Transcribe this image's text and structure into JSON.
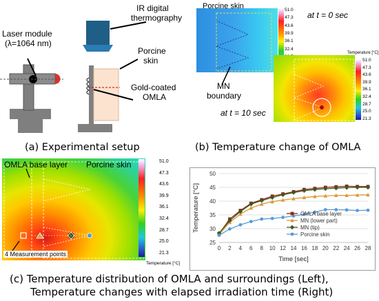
{
  "panel_a": {
    "caption": "(a) Experimental setup",
    "laser_label_1": "Laser module",
    "laser_label_2": "(λ=1064 nm)",
    "ir_label_1": "IR digital",
    "ir_label_2": "thermography",
    "skin_label_1": "Porcine",
    "skin_label_2": "skin",
    "omla_label_1": "Gold-coated",
    "omla_label_2": "OMLA"
  },
  "panel_b": {
    "caption": "(b) Temperature change of OMLA",
    "porcine_label": "Porcine skin",
    "t0_label": "at t = 0 sec",
    "t10_label": "at t = 10 sec",
    "mn_label_1": "MN",
    "mn_label_2": "boundary",
    "scale_title": "Temperature [°C]",
    "scale_values": [
      "51.0",
      "47.3",
      "43.6",
      "39.9",
      "36.1",
      "32.4",
      "28.7",
      "25.0",
      "21.3"
    ]
  },
  "panel_c": {
    "omla_label": "OMLA base layer",
    "porcine_label": "Porcine skin",
    "points_label": "4 Measurement points",
    "scale_title": "Temperature [°C]",
    "scale_values": [
      "51.0",
      "47.3",
      "43.6",
      "39.9",
      "36.1",
      "32.4",
      "28.7",
      "25.0",
      "21.3"
    ]
  },
  "caption_bottom_1": "(c) Temperature distribution of OMLA and surroundings (Left),",
  "caption_bottom_2": "Temperature changes with elapsed irradiation time (Right)",
  "chart_data": {
    "type": "line",
    "xlabel": "Time [sec]",
    "ylabel": "Temperature [°C]",
    "xlim": [
      0,
      28
    ],
    "ylim": [
      25,
      50
    ],
    "x": [
      0,
      2,
      4,
      6,
      8,
      10,
      12,
      14,
      16,
      18,
      20,
      22,
      24,
      26,
      28
    ],
    "xticks": [
      "0",
      "2",
      "4",
      "6",
      "8",
      "10",
      "12",
      "14",
      "16",
      "18",
      "20",
      "22",
      "24",
      "26",
      "28"
    ],
    "yticks": [
      "25",
      "30",
      "35",
      "40",
      "45",
      "50"
    ],
    "grid": true,
    "legend_position": "bottom-right",
    "series": [
      {
        "name": "OMLA base layer",
        "color": "#8b2a1a",
        "marker": "square",
        "values": [
          28.2,
          33.5,
          36.6,
          39.2,
          40.5,
          41.8,
          42.6,
          43.4,
          44.2,
          44.6,
          45.0,
          45.2,
          45.4,
          45.3,
          45.3
        ]
      },
      {
        "name": "MN (lower part)",
        "color": "#d99a3a",
        "marker": "triangle",
        "values": [
          27.9,
          32.3,
          35.3,
          37.5,
          38.9,
          39.8,
          40.4,
          40.9,
          41.3,
          41.7,
          41.9,
          42.1,
          42.1,
          42.2,
          42.3
        ]
      },
      {
        "name": "MN (tip)",
        "color": "#3d5a22",
        "marker": "diamond",
        "values": [
          28.4,
          32.9,
          36.2,
          38.9,
          40.2,
          41.3,
          42.3,
          43.1,
          43.8,
          44.2,
          44.5,
          44.7,
          44.9,
          45.0,
          45.0
        ]
      },
      {
        "name": "Porcine skin",
        "color": "#5b9bd5",
        "marker": "circle",
        "values": [
          27.6,
          29.9,
          31.4,
          32.6,
          33.5,
          33.7,
          34.1,
          34.6,
          35.2,
          36.0,
          36.9,
          36.9,
          36.8,
          36.6,
          36.7
        ]
      }
    ]
  }
}
